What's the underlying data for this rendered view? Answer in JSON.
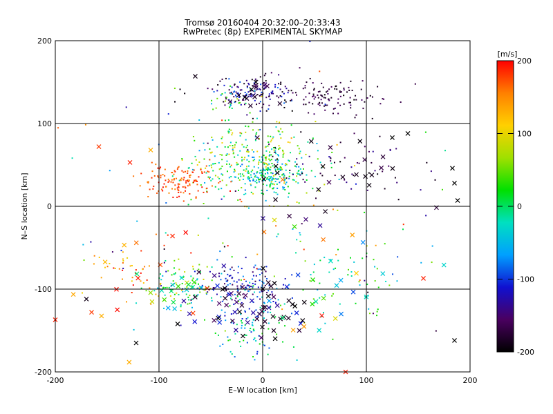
{
  "chart_data": {
    "type": "scatter",
    "title": "Tromsø 20160404 20:32:00–20:33:43",
    "subtitle": "RwPretec (8p) EXPERIMENTAL SKYMAP",
    "xlabel": "E–W location [km]",
    "ylabel": "N–S location [km]",
    "xlim": [
      -200,
      200
    ],
    "ylim": [
      -200,
      200
    ],
    "xticks": [
      -200,
      -100,
      0,
      100,
      200
    ],
    "yticks": [
      -200,
      -100,
      0,
      100,
      200
    ],
    "grid": true,
    "colorbar": {
      "label": "[m/s]",
      "range": [
        -200,
        200
      ],
      "ticks": [
        200,
        100,
        0,
        -100,
        -200
      ],
      "colors": [
        "#000000",
        "#4a0060",
        "#1010d0",
        "#00a0ff",
        "#00e0c0",
        "#00e000",
        "#a0e000",
        "#ffd000",
        "#ff8000",
        "#ff0000"
      ]
    },
    "clusters": [
      {
        "cx": -10,
        "cy": 138,
        "sx": 18,
        "sy": 9,
        "n": 140,
        "vmin": -200,
        "vmax": -80,
        "marker": "dot"
      },
      {
        "cx": 65,
        "cy": 132,
        "sx": 28,
        "sy": 10,
        "n": 120,
        "vmin": -200,
        "vmax": -150,
        "marker": "dot"
      },
      {
        "cx": -30,
        "cy": 130,
        "sx": 12,
        "sy": 10,
        "n": 25,
        "vmin": -80,
        "vmax": 80,
        "marker": "dot"
      },
      {
        "cx": -12,
        "cy": 55,
        "sx": 30,
        "sy": 22,
        "n": 300,
        "vmin": -70,
        "vmax": 110,
        "marker": "dot"
      },
      {
        "cx": 8,
        "cy": 38,
        "sx": 16,
        "sy": 10,
        "n": 160,
        "vmin": -90,
        "vmax": 30,
        "marker": "dot"
      },
      {
        "cx": -78,
        "cy": 30,
        "sx": 18,
        "sy": 10,
        "n": 130,
        "vmin": 150,
        "vmax": 200,
        "marker": "dot"
      },
      {
        "cx": 80,
        "cy": 50,
        "sx": 50,
        "sy": 25,
        "n": 60,
        "vmin": -200,
        "vmax": -130,
        "marker": "dot"
      },
      {
        "cx": -20,
        "cy": -95,
        "sx": 22,
        "sy": 12,
        "n": 120,
        "vmin": -170,
        "vmax": -70,
        "marker": "dot"
      },
      {
        "cx": -75,
        "cy": -95,
        "sx": 18,
        "sy": 12,
        "n": 90,
        "vmin": -60,
        "vmax": 110,
        "marker": "dot"
      },
      {
        "cx": -15,
        "cy": -140,
        "sx": 20,
        "sy": 22,
        "n": 100,
        "vmin": -120,
        "vmax": 40,
        "marker": "dot"
      },
      {
        "cx": 60,
        "cy": -80,
        "sx": 45,
        "sy": 35,
        "n": 80,
        "vmin": -60,
        "vmax": 60,
        "marker": "dot"
      },
      {
        "cx": -130,
        "cy": -80,
        "sx": 25,
        "sy": 15,
        "n": 40,
        "vmin": 100,
        "vmax": 200,
        "marker": "dot"
      },
      {
        "cx": 0,
        "cy": -60,
        "sx": 90,
        "sy": 60,
        "n": 70,
        "vmin": -200,
        "vmax": 200,
        "marker": "dot"
      },
      {
        "cx": 0,
        "cy": 60,
        "sx": 110,
        "sy": 60,
        "n": 50,
        "vmin": -200,
        "vmax": 200,
        "marker": "dot"
      },
      {
        "cx": -20,
        "cy": -115,
        "sx": 25,
        "sy": 20,
        "n": 45,
        "vmin": -200,
        "vmax": -100,
        "marker": "x"
      },
      {
        "cx": 15,
        "cy": -135,
        "sx": 15,
        "sy": 12,
        "n": 20,
        "vmin": -200,
        "vmax": -170,
        "marker": "x"
      },
      {
        "cx": -80,
        "cy": -100,
        "sx": 15,
        "sy": 10,
        "n": 18,
        "vmin": -80,
        "vmax": 100,
        "marker": "x"
      },
      {
        "cx": 0,
        "cy": 135,
        "sx": 15,
        "sy": 8,
        "n": 14,
        "vmin": -200,
        "vmax": -120,
        "marker": "x"
      },
      {
        "cx": 80,
        "cy": 45,
        "sx": 45,
        "sy": 22,
        "n": 22,
        "vmin": -200,
        "vmax": -160,
        "marker": "x"
      },
      {
        "cx": 60,
        "cy": -110,
        "sx": 35,
        "sy": 25,
        "n": 20,
        "vmin": -100,
        "vmax": 200,
        "marker": "x"
      },
      {
        "cx": -120,
        "cy": -100,
        "sx": 35,
        "sy": 35,
        "n": 14,
        "vmin": 120,
        "vmax": 200,
        "marker": "x"
      },
      {
        "cx": 20,
        "cy": -20,
        "sx": 50,
        "sy": 20,
        "n": 12,
        "vmin": -200,
        "vmax": 200,
        "marker": "x"
      }
    ],
    "points": [
      {
        "x": -158,
        "y": 72,
        "v": 180,
        "marker": "x"
      },
      {
        "x": -128,
        "y": 53,
        "v": 190,
        "marker": "x"
      },
      {
        "x": -108,
        "y": 68,
        "v": 130,
        "marker": "x"
      },
      {
        "x": -65,
        "y": 157,
        "v": -190,
        "marker": "x"
      },
      {
        "x": -170,
        "y": -112,
        "v": -190,
        "marker": "x"
      },
      {
        "x": -165,
        "y": -128,
        "v": 180,
        "marker": "x"
      },
      {
        "x": -122,
        "y": -165,
        "v": -200,
        "marker": "x"
      },
      {
        "x": -200,
        "y": -137,
        "v": 190,
        "marker": "x"
      },
      {
        "x": 183,
        "y": 46,
        "v": -200,
        "marker": "x"
      },
      {
        "x": 188,
        "y": 7,
        "v": -200,
        "marker": "x"
      },
      {
        "x": 185,
        "y": 28,
        "v": -200,
        "marker": "x"
      },
      {
        "x": 185,
        "y": -162,
        "v": -200,
        "marker": "x"
      },
      {
        "x": 155,
        "y": -87,
        "v": 190,
        "marker": "x"
      },
      {
        "x": 140,
        "y": 88,
        "v": -200,
        "marker": "x"
      },
      {
        "x": 125,
        "y": 83,
        "v": -200,
        "marker": "x"
      },
      {
        "x": 80,
        "y": -200,
        "v": 190,
        "marker": "x"
      },
      {
        "x": -82,
        "y": -142,
        "v": -200,
        "marker": "x"
      }
    ]
  }
}
